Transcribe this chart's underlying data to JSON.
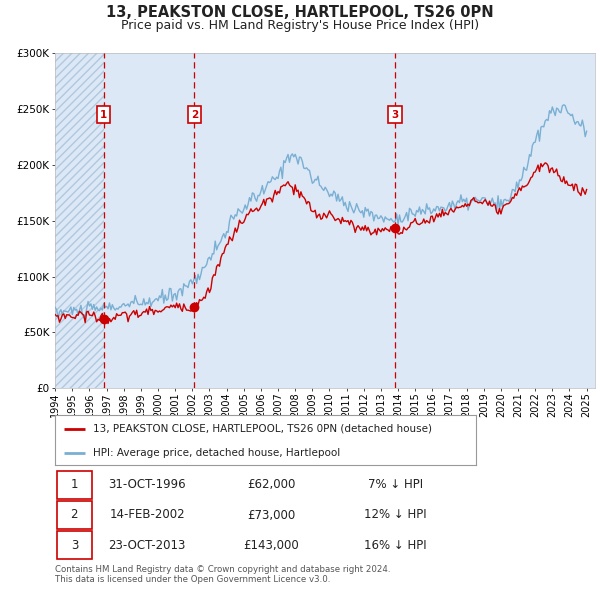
{
  "title": "13, PEAKSTON CLOSE, HARTLEPOOL, TS26 0PN",
  "subtitle": "Price paid vs. HM Land Registry's House Price Index (HPI)",
  "title_fontsize": 10.5,
  "subtitle_fontsize": 9,
  "background_color": "#ffffff",
  "plot_bg_color": "#dce8f5",
  "grid_color": "#ffffff",
  "hpi_color": "#7aafd4",
  "price_color": "#cc0000",
  "vline_color": "#cc0000",
  "sale_points": [
    {
      "date_num": 1996.83,
      "value": 62000,
      "label": "1"
    },
    {
      "date_num": 2002.12,
      "value": 73000,
      "label": "2"
    },
    {
      "date_num": 2013.81,
      "value": 143000,
      "label": "3"
    }
  ],
  "legend_label_price": "13, PEAKSTON CLOSE, HARTLEPOOL, TS26 0PN (detached house)",
  "legend_label_hpi": "HPI: Average price, detached house, Hartlepool",
  "table_rows": [
    {
      "num": "1",
      "date": "31-OCT-1996",
      "price": "£62,000",
      "pct": "7% ↓ HPI"
    },
    {
      "num": "2",
      "date": "14-FEB-2002",
      "price": "£73,000",
      "pct": "12% ↓ HPI"
    },
    {
      "num": "3",
      "date": "23-OCT-2013",
      "price": "£143,000",
      "pct": "16% ↓ HPI"
    }
  ],
  "footer": "Contains HM Land Registry data © Crown copyright and database right 2024.\nThis data is licensed under the Open Government Licence v3.0.",
  "xmin": 1994.0,
  "xmax": 2025.5,
  "ymin": 0,
  "ymax": 300000,
  "yticks": [
    0,
    50000,
    100000,
    150000,
    200000,
    250000,
    300000
  ],
  "ytick_labels": [
    "£0",
    "£50K",
    "£100K",
    "£150K",
    "£200K",
    "£250K",
    "£300K"
  ],
  "hpi_anchors": [
    [
      1994.0,
      68000
    ],
    [
      1995.0,
      69000
    ],
    [
      1996.0,
      70000
    ],
    [
      1997.0,
      72000
    ],
    [
      1998.0,
      74000
    ],
    [
      1999.0,
      76000
    ],
    [
      2000.0,
      79000
    ],
    [
      2001.0,
      85000
    ],
    [
      2002.0,
      95000
    ],
    [
      2003.0,
      115000
    ],
    [
      2004.0,
      142000
    ],
    [
      2005.0,
      162000
    ],
    [
      2006.0,
      175000
    ],
    [
      2007.0,
      190000
    ],
    [
      2007.75,
      212000
    ],
    [
      2008.25,
      205000
    ],
    [
      2009.0,
      188000
    ],
    [
      2009.5,
      180000
    ],
    [
      2010.0,
      175000
    ],
    [
      2011.0,
      165000
    ],
    [
      2012.0,
      158000
    ],
    [
      2012.5,
      155000
    ],
    [
      2013.0,
      153000
    ],
    [
      2013.5,
      150000
    ],
    [
      2014.0,
      153000
    ],
    [
      2014.5,
      155000
    ],
    [
      2015.0,
      157000
    ],
    [
      2016.0,
      160000
    ],
    [
      2017.0,
      163000
    ],
    [
      2018.0,
      167000
    ],
    [
      2019.0,
      168000
    ],
    [
      2019.5,
      165000
    ],
    [
      2020.0,
      163000
    ],
    [
      2020.5,
      170000
    ],
    [
      2021.0,
      183000
    ],
    [
      2021.5,
      200000
    ],
    [
      2022.0,
      220000
    ],
    [
      2022.5,
      235000
    ],
    [
      2023.0,
      248000
    ],
    [
      2023.5,
      252000
    ],
    [
      2024.0,
      245000
    ],
    [
      2024.5,
      238000
    ],
    [
      2025.0,
      228000
    ]
  ],
  "price_anchors": [
    [
      1994.0,
      64000
    ],
    [
      1995.0,
      65000
    ],
    [
      1996.0,
      66000
    ],
    [
      1996.83,
      62000
    ],
    [
      1997.0,
      61000
    ],
    [
      1997.5,
      63000
    ],
    [
      1998.0,
      65000
    ],
    [
      1999.0,
      67000
    ],
    [
      2000.0,
      70000
    ],
    [
      2001.0,
      73000
    ],
    [
      2002.12,
      73000
    ],
    [
      2002.5,
      78000
    ],
    [
      2003.0,
      90000
    ],
    [
      2004.0,
      128000
    ],
    [
      2005.0,
      152000
    ],
    [
      2006.0,
      163000
    ],
    [
      2007.0,
      175000
    ],
    [
      2007.5,
      183000
    ],
    [
      2008.0,
      178000
    ],
    [
      2008.5,
      170000
    ],
    [
      2009.0,
      158000
    ],
    [
      2009.5,
      153000
    ],
    [
      2010.0,
      157000
    ],
    [
      2010.5,
      152000
    ],
    [
      2011.0,
      148000
    ],
    [
      2011.5,
      145000
    ],
    [
      2012.0,
      143000
    ],
    [
      2012.5,
      140000
    ],
    [
      2013.0,
      142000
    ],
    [
      2013.81,
      143000
    ],
    [
      2014.0,
      140000
    ],
    [
      2014.5,
      142000
    ],
    [
      2015.0,
      148000
    ],
    [
      2015.5,
      150000
    ],
    [
      2016.0,
      152000
    ],
    [
      2016.5,
      155000
    ],
    [
      2017.0,
      158000
    ],
    [
      2017.5,
      162000
    ],
    [
      2018.0,
      165000
    ],
    [
      2018.5,
      168000
    ],
    [
      2019.0,
      165000
    ],
    [
      2019.5,
      162000
    ],
    [
      2020.0,
      158000
    ],
    [
      2020.5,
      165000
    ],
    [
      2021.0,
      175000
    ],
    [
      2021.5,
      183000
    ],
    [
      2022.0,
      195000
    ],
    [
      2022.5,
      200000
    ],
    [
      2023.0,
      196000
    ],
    [
      2023.5,
      188000
    ],
    [
      2024.0,
      183000
    ],
    [
      2024.5,
      178000
    ],
    [
      2025.0,
      175000
    ]
  ]
}
